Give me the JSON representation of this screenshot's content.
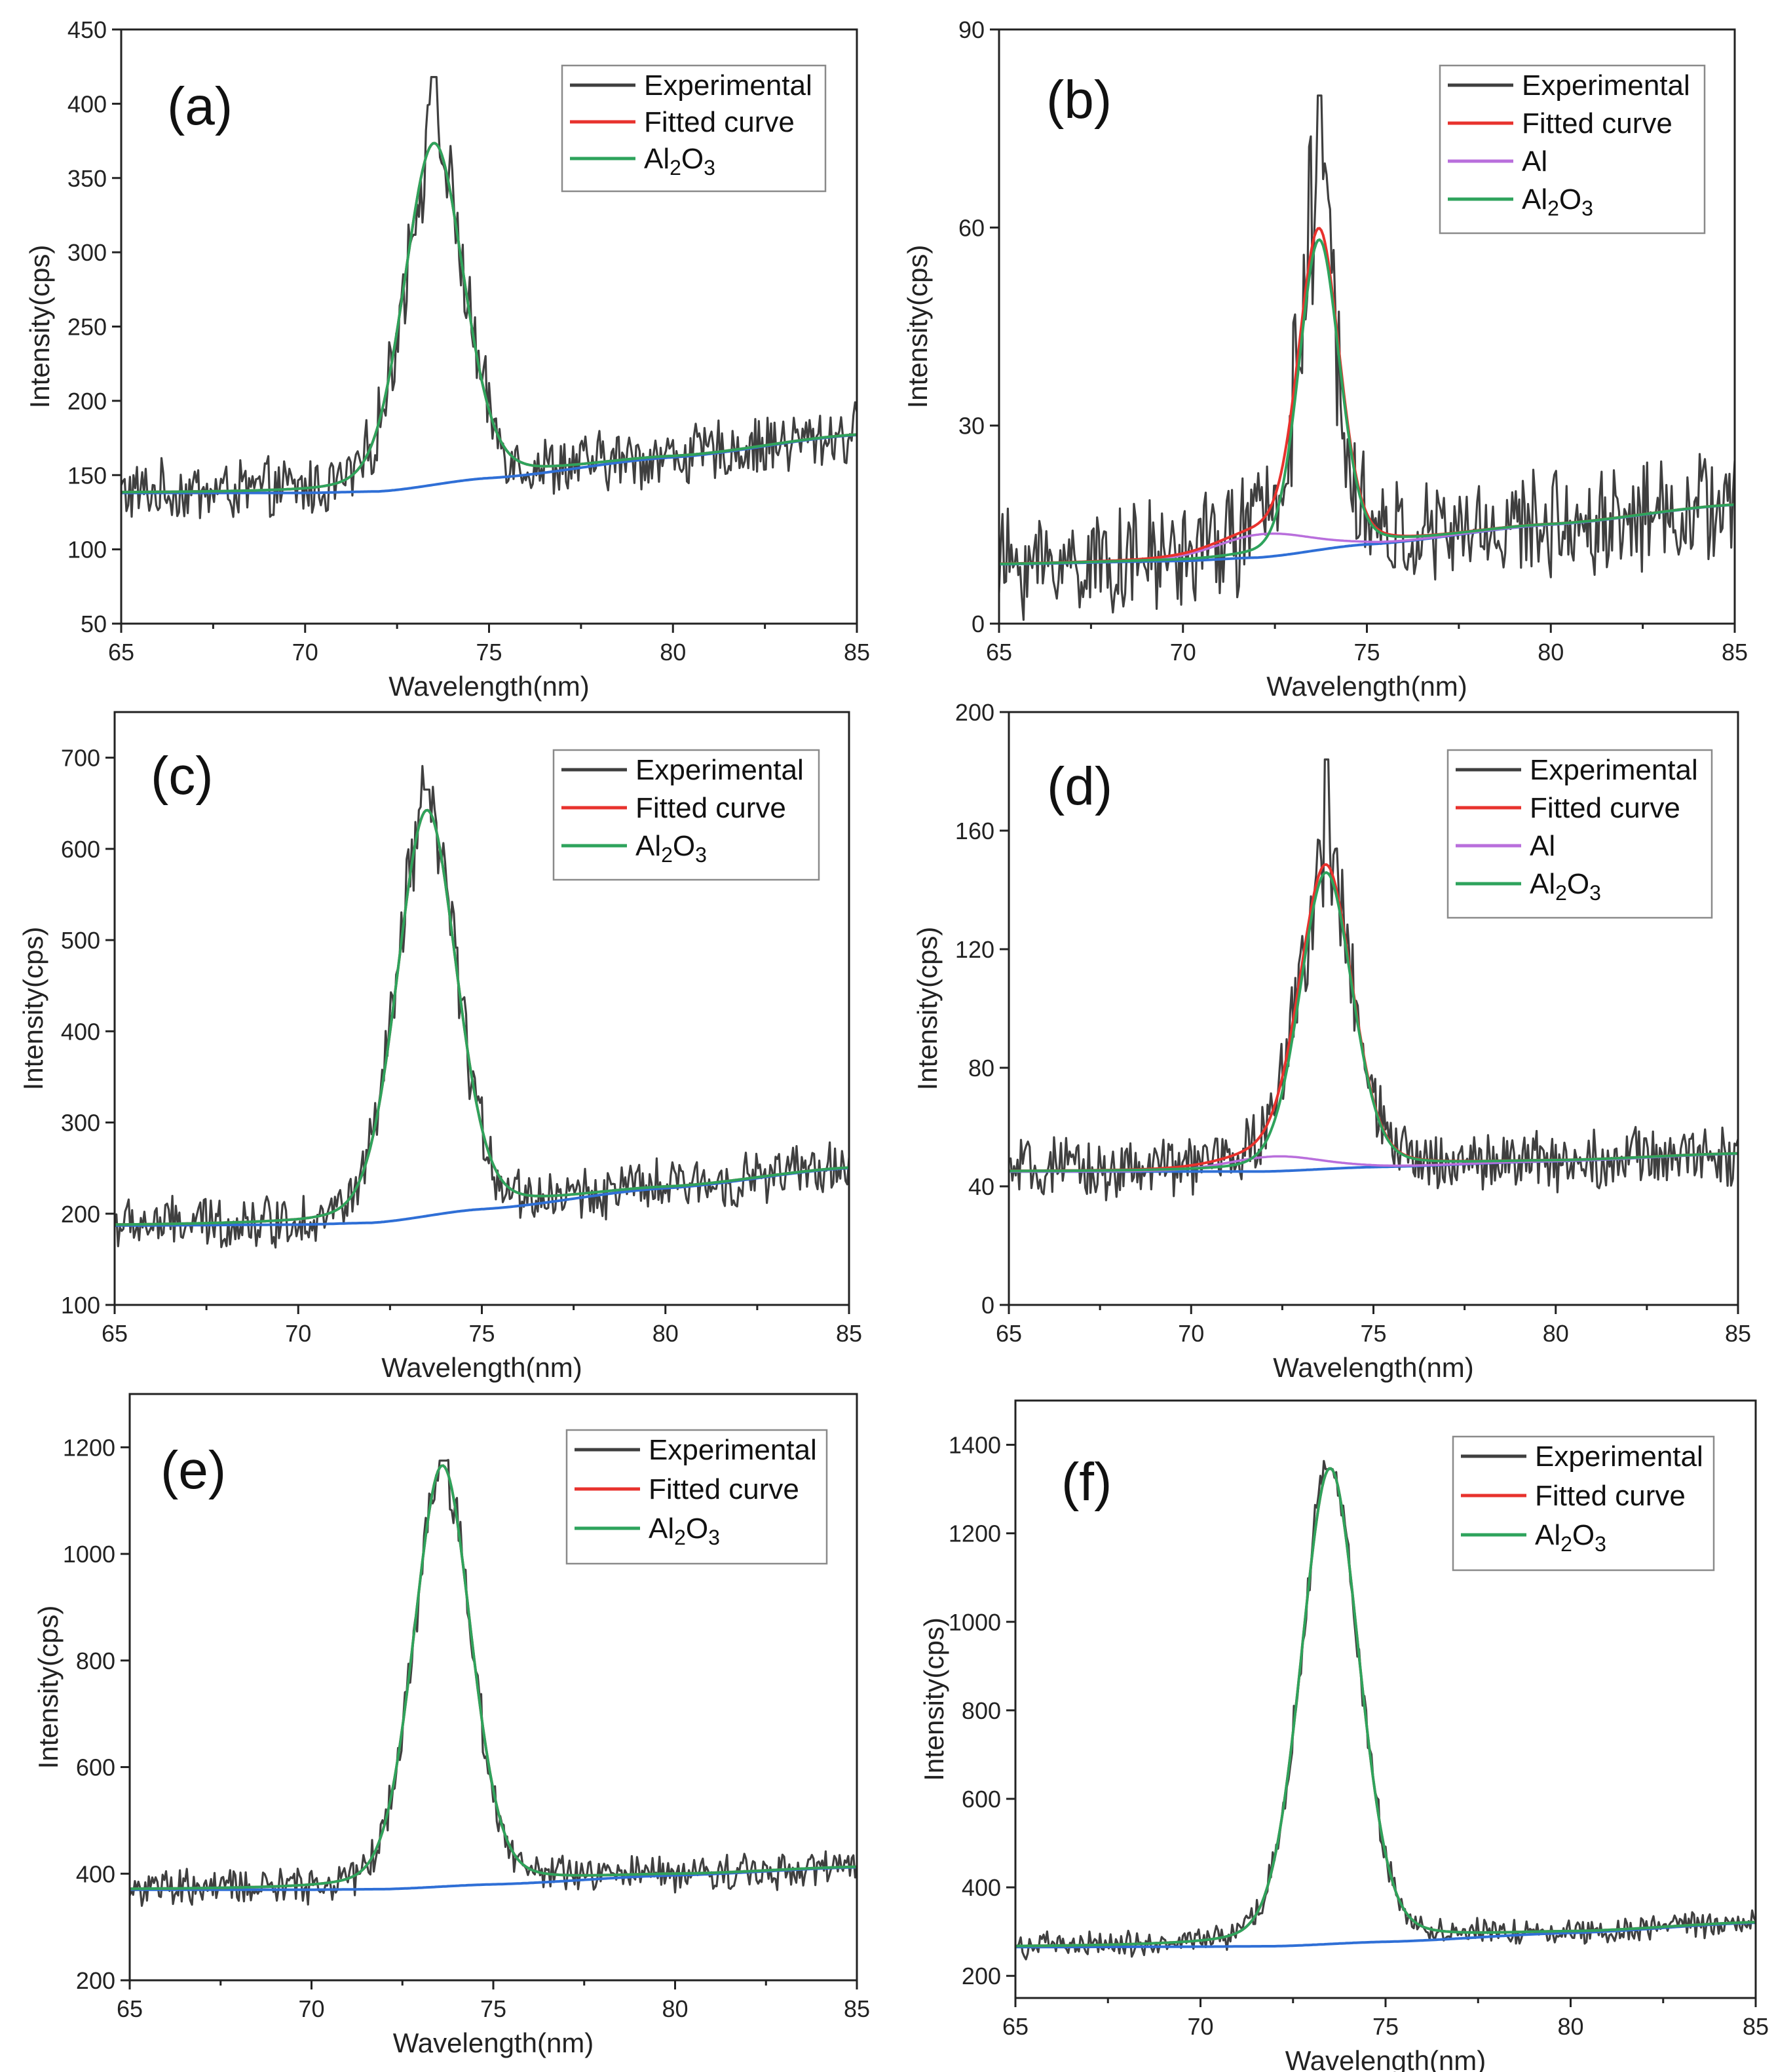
{
  "figure": {
    "xlabel": "Wavelength(nm)",
    "ylabel": "Intensity(cps)"
  },
  "colors": {
    "Experimental": "#3f3f3f",
    "Fitted curve": "#e8322d",
    "Al": "#b96fdc",
    "Al2O3": "#2ea35c",
    "baseline": "#2f6fd6"
  },
  "chart_data": [
    {
      "type": "line",
      "panel": "(a)",
      "xlabel": "Wavelength(nm)",
      "ylabel": "Intensity(cps)",
      "xlim": [
        65,
        85
      ],
      "ylim": [
        50,
        450
      ],
      "xticks": [
        65,
        70,
        75,
        80,
        85
      ],
      "yticks": [
        50,
        100,
        150,
        200,
        250,
        300,
        350,
        400,
        450
      ],
      "legend": [
        "Experimental",
        "Fitted curve",
        "Al2O3"
      ],
      "legend_placement": "top-right",
      "baseline": {
        "x": [
          65,
          70,
          72,
          75,
          80,
          85
        ],
        "y": [
          138,
          138,
          139,
          148,
          162,
          177
        ]
      },
      "al2o3_peak": {
        "center": 73.5,
        "amplitude": 230,
        "fwhm": 1.9
      },
      "experimental_peak_max": 418,
      "noise_amplitude": 18,
      "al_peak": null
    },
    {
      "type": "line",
      "panel": "(b)",
      "xlabel": "Wavelength(nm)",
      "ylabel": "Intensity(cps)",
      "xlim": [
        65,
        85
      ],
      "ylim": [
        0,
        90
      ],
      "xticks": [
        65,
        70,
        75,
        80,
        85
      ],
      "yticks": [
        0,
        30,
        60,
        90
      ],
      "legend": [
        "Experimental",
        "Fitted curve",
        "Al",
        "Al2O3"
      ],
      "legend_placement": "top-right",
      "baseline": {
        "x": [
          65,
          70,
          72,
          75,
          80,
          85
        ],
        "y": [
          9,
          9.5,
          10,
          12,
          15,
          18
        ]
      },
      "al2o3_peak": {
        "center": 73.7,
        "amplitude": 47,
        "fwhm": 1.3
      },
      "experimental_peak_max": 80,
      "noise_amplitude": 7,
      "al_peak": {
        "center": 72.2,
        "amplitude": 3.5,
        "fwhm": 3.0
      }
    },
    {
      "type": "line",
      "panel": "(c)",
      "xlabel": "Wavelength(nm)",
      "ylabel": "Intensity(cps)",
      "xlim": [
        65,
        85
      ],
      "ylim": [
        100,
        750
      ],
      "xticks": [
        65,
        70,
        75,
        80,
        85
      ],
      "yticks": [
        100,
        200,
        300,
        400,
        500,
        600,
        700
      ],
      "legend": [
        "Experimental",
        "Fitted curve",
        "Al2O3"
      ],
      "legend_placement": "top-right",
      "baseline": {
        "x": [
          65,
          70,
          72,
          75,
          80,
          85
        ],
        "y": [
          187,
          188,
          190,
          205,
          228,
          250
        ]
      },
      "al2o3_peak": {
        "center": 73.5,
        "amplitude": 445,
        "fwhm": 1.9
      },
      "experimental_peak_max": 665,
      "noise_amplitude": 25,
      "al_peak": null
    },
    {
      "type": "line",
      "panel": "(d)",
      "xlabel": "Wavelength(nm)",
      "ylabel": "Intensity(cps)",
      "xlim": [
        65,
        85
      ],
      "ylim": [
        0,
        200
      ],
      "xticks": [
        65,
        70,
        75,
        80,
        85
      ],
      "yticks": [
        0,
        40,
        80,
        120,
        160,
        200
      ],
      "legend": [
        "Experimental",
        "Fitted curve",
        "Al",
        "Al2O3"
      ],
      "legend_placement": "top-right",
      "baseline": {
        "x": [
          65,
          70,
          72,
          75,
          80,
          85
        ],
        "y": [
          45,
          45,
          45,
          46.5,
          48.5,
          51
        ]
      },
      "al2o3_peak": {
        "center": 73.7,
        "amplitude": 100,
        "fwhm": 1.7
      },
      "experimental_peak_max": 184,
      "noise_amplitude": 9,
      "al_peak": {
        "center": 72.3,
        "amplitude": 5,
        "fwhm": 3.0
      }
    },
    {
      "type": "line",
      "panel": "(e)",
      "xlabel": "Wavelength(nm)",
      "ylabel": "Intensity(cps)",
      "xlim": [
        65,
        85
      ],
      "ylim": [
        200,
        1300
      ],
      "xticks": [
        65,
        70,
        75,
        80,
        85
      ],
      "yticks": [
        200,
        400,
        600,
        800,
        1000,
        1200
      ],
      "legend": [
        "Experimental",
        "Fitted curve",
        "Al2O3"
      ],
      "legend_placement": "top-right",
      "baseline": {
        "x": [
          65,
          70,
          72,
          75,
          80,
          85
        ],
        "y": [
          370,
          370,
          371,
          380,
          397,
          412
        ]
      },
      "al2o3_peak": {
        "center": 73.6,
        "amplitude": 790,
        "fwhm": 1.85
      },
      "experimental_peak_max": 1175,
      "noise_amplitude": 30,
      "al_peak": null
    },
    {
      "type": "line",
      "panel": "(f)",
      "xlabel": "Wavelength(nm)",
      "ylabel": "Intensity(cps)",
      "xlim": [
        65,
        85
      ],
      "ylim": [
        150,
        1500
      ],
      "xticks": [
        65,
        70,
        75,
        80,
        85
      ],
      "yticks": [
        200,
        400,
        600,
        800,
        1000,
        1200,
        1400
      ],
      "legend": [
        "Experimental",
        "Fitted curve",
        "Al2O3"
      ],
      "legend_placement": "top-right",
      "baseline": {
        "x": [
          65,
          70,
          72,
          75,
          80,
          85
        ],
        "y": [
          265,
          266,
          267,
          277,
          297,
          320
        ]
      },
      "al2o3_peak": {
        "center": 73.5,
        "amplitude": 1075,
        "fwhm": 1.85
      },
      "experimental_peak_max": 1345,
      "noise_amplitude": 25,
      "al_peak": null
    }
  ]
}
